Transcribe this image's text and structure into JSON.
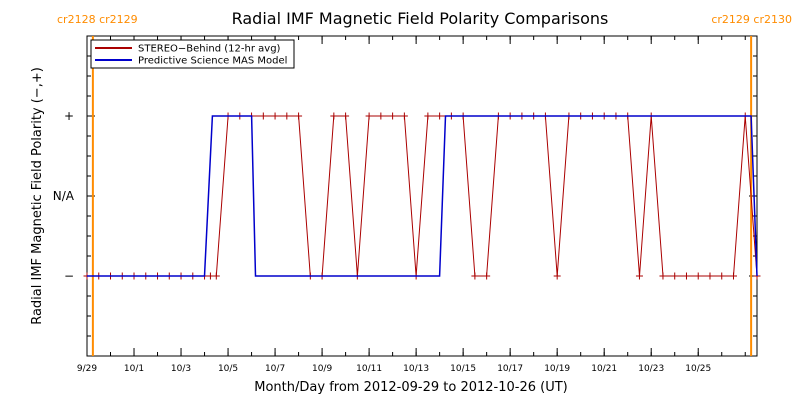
{
  "chart_data": {
    "type": "line",
    "title": "Radial IMF Magnetic Field Polarity Comparisons",
    "xlabel": "Month/Day from 2012-09-29 to 2012-10-26 (UT)",
    "ylabel": "Radial IMF Magnetic Field Polarity (−,+)",
    "xlim": [
      "2012-09-29T00:00",
      "2012-10-27T12:00"
    ],
    "x_ticks": [
      "9/29",
      "10/1",
      "10/3",
      "10/5",
      "10/7",
      "10/9",
      "10/11",
      "10/13",
      "10/15",
      "10/17",
      "10/19",
      "10/21",
      "10/23",
      "10/25"
    ],
    "x_tick_dates": [
      "2012-09-29",
      "2012-10-01",
      "2012-10-03",
      "2012-10-05",
      "2012-10-07",
      "2012-10-09",
      "2012-10-11",
      "2012-10-13",
      "2012-10-15",
      "2012-10-17",
      "2012-10-19",
      "2012-10-21",
      "2012-10-23",
      "2012-10-25"
    ],
    "y_categories": [
      "−",
      "N/A",
      "+"
    ],
    "y_values": [
      -1,
      0,
      1
    ],
    "ylim": [
      -2,
      2
    ],
    "grid": false,
    "legend_position": "top-left",
    "carrington_markers": [
      {
        "labels": [
          "cr2128",
          "cr2129"
        ],
        "x": "2012-09-29T06:00",
        "color": "#ff8c00"
      },
      {
        "labels": [
          "cr2129",
          "cr2130"
        ],
        "x": "2012-10-27T06:00",
        "color": "#ff8c00"
      }
    ],
    "series": [
      {
        "name": "STEREO−Behind (12-hr avg)",
        "color": "#aa0000",
        "markers": "plus",
        "x": [
          "2012-09-29T00:00",
          "2012-09-29T12:00",
          "2012-09-30T00:00",
          "2012-09-30T12:00",
          "2012-10-01T00:00",
          "2012-10-01T12:00",
          "2012-10-02T00:00",
          "2012-10-02T12:00",
          "2012-10-03T00:00",
          "2012-10-03T12:00",
          "2012-10-04T00:00",
          "2012-10-04T06:00",
          "2012-10-04T12:00",
          "2012-10-05T00:00",
          "2012-10-05T12:00",
          "2012-10-06T00:00",
          "2012-10-06T12:00",
          "2012-10-07T00:00",
          "2012-10-07T12:00",
          "2012-10-08T00:00",
          "2012-10-08T12:00",
          "2012-10-09T00:00",
          "2012-10-09T12:00",
          "2012-10-10T00:00",
          "2012-10-10T12:00",
          "2012-10-11T00:00",
          "2012-10-11T12:00",
          "2012-10-12T00:00",
          "2012-10-12T12:00",
          "2012-10-13T00:00",
          "2012-10-13T12:00",
          "2012-10-14T00:00",
          "2012-10-14T12:00",
          "2012-10-15T00:00",
          "2012-10-15T12:00",
          "2012-10-16T00:00",
          "2012-10-16T12:00",
          "2012-10-17T00:00",
          "2012-10-17T12:00",
          "2012-10-18T00:00",
          "2012-10-18T12:00",
          "2012-10-19T00:00",
          "2012-10-19T12:00",
          "2012-10-20T00:00",
          "2012-10-20T12:00",
          "2012-10-21T00:00",
          "2012-10-21T12:00",
          "2012-10-22T00:00",
          "2012-10-22T12:00",
          "2012-10-23T00:00",
          "2012-10-23T12:00",
          "2012-10-24T00:00",
          "2012-10-24T12:00",
          "2012-10-25T00:00",
          "2012-10-25T12:00",
          "2012-10-26T00:00",
          "2012-10-26T12:00",
          "2012-10-27T00:00",
          "2012-10-27T12:00"
        ],
        "y": [
          -1,
          -1,
          -1,
          -1,
          -1,
          -1,
          -1,
          -1,
          -1,
          -1,
          -1,
          -1,
          -1,
          1,
          1,
          1,
          1,
          1,
          1,
          1,
          -1,
          -1,
          1,
          1,
          -1,
          1,
          1,
          1,
          1,
          -1,
          1,
          1,
          1,
          1,
          -1,
          -1,
          1,
          1,
          1,
          1,
          1,
          -1,
          1,
          1,
          1,
          1,
          1,
          1,
          -1,
          1,
          -1,
          -1,
          -1,
          -1,
          -1,
          -1,
          -1,
          1,
          -1
        ]
      },
      {
        "name": "Predictive Science MAS Model",
        "color": "#0000cc",
        "x": [
          "2012-09-29T00:00",
          "2012-10-04T00:00",
          "2012-10-04T08:00",
          "2012-10-06T00:00",
          "2012-10-06T04:00",
          "2012-10-14T00:00",
          "2012-10-14T06:00",
          "2012-10-27T06:00",
          "2012-10-27T12:00"
        ],
        "y": [
          -1,
          -1,
          1,
          1,
          -1,
          -1,
          1,
          1,
          -1
        ]
      }
    ]
  }
}
